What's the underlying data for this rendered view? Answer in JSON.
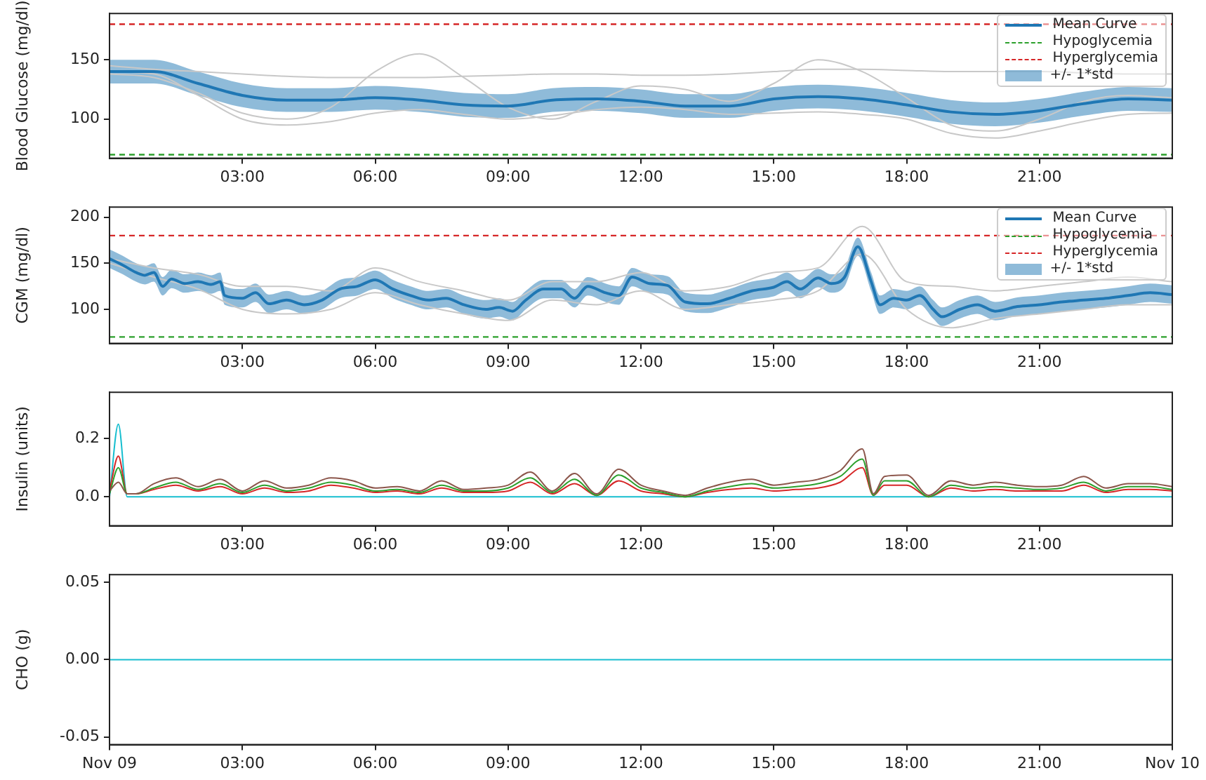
{
  "chart_data": [
    {
      "type": "line",
      "ylabel": "Blood Glucose (mg/dl)",
      "xlim": [
        0,
        24
      ],
      "ylim": [
        67,
        189
      ],
      "yticks": [
        100,
        150
      ],
      "marker": "none",
      "grid": false,
      "legend": "top right",
      "xticks": [
        {
          "value": 3,
          "label": "03:00"
        },
        {
          "value": 6,
          "label": "06:00"
        },
        {
          "value": 9,
          "label": "09:00"
        },
        {
          "value": 12,
          "label": "12:00"
        },
        {
          "value": 15,
          "label": "15:00"
        },
        {
          "value": 18,
          "label": "18:00"
        },
        {
          "value": 21,
          "label": "21:00"
        }
      ],
      "x": [
        0,
        1,
        2,
        3,
        4,
        5,
        6,
        7,
        8,
        9,
        10,
        11,
        12,
        13,
        14,
        15,
        16,
        17,
        18,
        19,
        20,
        21,
        22,
        23,
        24
      ],
      "series": [
        {
          "name": "Mean Curve",
          "color": "#1f77b4",
          "values": [
            140,
            140,
            130,
            120,
            116,
            116,
            118,
            116,
            112,
            111,
            116,
            117,
            115,
            111,
            111,
            117,
            119,
            117,
            112,
            106,
            104,
            107,
            113,
            117,
            116
          ],
          "lower": [
            130,
            130,
            120,
            110,
            106,
            106,
            108,
            106,
            102,
            101,
            106,
            107,
            105,
            101,
            101,
            107,
            109,
            107,
            102,
            96,
            94,
            97,
            103,
            107,
            106
          ],
          "upper": [
            150,
            150,
            140,
            130,
            126,
            126,
            128,
            126,
            122,
            121,
            126,
            127,
            125,
            121,
            121,
            127,
            129,
            127,
            122,
            116,
            114,
            117,
            123,
            127,
            126
          ]
        },
        {
          "color": "#c8c8c8",
          "values": [
            145,
            142,
            140,
            138,
            136,
            135,
            135,
            135,
            136,
            137,
            138,
            138,
            137,
            137,
            138,
            140,
            142,
            142,
            141,
            140,
            140,
            140,
            139,
            138,
            138
          ]
        },
        {
          "color": "#c8c8c8",
          "values": [
            138,
            135,
            122,
            105,
            100,
            110,
            140,
            155,
            135,
            110,
            100,
            115,
            128,
            125,
            115,
            130,
            150,
            140,
            118,
            95,
            90,
            100,
            115,
            120,
            118
          ]
        },
        {
          "color": "#c8c8c8",
          "values": [
            140,
            138,
            120,
            100,
            95,
            98,
            105,
            108,
            104,
            100,
            103,
            108,
            110,
            108,
            104,
            105,
            106,
            104,
            100,
            88,
            84,
            90,
            98,
            104,
            105
          ]
        }
      ],
      "annotations": [
        "+/- 1*std"
      ],
      "ref_lines": [
        {
          "axis": "y",
          "value": 70,
          "label": "Hypoglycemia",
          "color": "#2ca02c",
          "line_style": "dashed"
        },
        {
          "axis": "y",
          "value": 180,
          "label": "Hyperglycemia",
          "color": "#d62728",
          "line_style": "dashed"
        }
      ]
    },
    {
      "type": "line",
      "ylabel": "CGM (mg/dl)",
      "xlim": [
        0,
        24
      ],
      "ylim": [
        63,
        211
      ],
      "yticks": [
        100,
        150,
        200
      ],
      "marker": "none",
      "grid": false,
      "legend": "top right",
      "xticks": [
        {
          "value": 3,
          "label": "03:00"
        },
        {
          "value": 6,
          "label": "06:00"
        },
        {
          "value": 9,
          "label": "09:00"
        },
        {
          "value": 12,
          "label": "12:00"
        },
        {
          "value": 15,
          "label": "15:00"
        },
        {
          "value": 18,
          "label": "18:00"
        },
        {
          "value": 21,
          "label": "21:00"
        }
      ],
      "x": [
        0,
        0.3,
        0.6,
        0.8,
        1.0,
        1.2,
        1.4,
        1.7,
        2.0,
        2.3,
        2.5,
        2.6,
        3.0,
        3.3,
        3.6,
        4.0,
        4.4,
        4.8,
        5.2,
        5.6,
        6.0,
        6.4,
        6.8,
        7.2,
        7.6,
        8.0,
        8.5,
        8.8,
        9.1,
        9.4,
        9.8,
        10.2,
        10.5,
        10.8,
        11.2,
        11.5,
        11.8,
        12.2,
        12.6,
        13.0,
        13.5,
        14.0,
        14.5,
        15.0,
        15.3,
        15.6,
        16.0,
        16.3,
        16.6,
        16.9,
        17.2,
        17.4,
        17.7,
        18.0,
        18.3,
        18.6,
        18.8,
        19.2,
        19.6,
        20.0,
        20.5,
        21.0,
        21.5,
        22.0,
        22.5,
        23.0,
        23.5,
        24
      ],
      "series": [
        {
          "name": "Mean Curve",
          "color": "#1f77b4",
          "values": [
            155,
            148,
            140,
            137,
            140,
            125,
            133,
            128,
            130,
            127,
            130,
            115,
            112,
            118,
            106,
            110,
            105,
            110,
            122,
            125,
            132,
            122,
            115,
            110,
            112,
            105,
            100,
            102,
            98,
            110,
            122,
            122,
            112,
            125,
            118,
            115,
            135,
            128,
            126,
            108,
            106,
            112,
            120,
            124,
            130,
            122,
            134,
            128,
            135,
            168,
            130,
            105,
            112,
            110,
            115,
            100,
            92,
            100,
            105,
            98,
            103,
            105,
            108,
            110,
            112,
            115,
            118,
            116
          ],
          "lower": [
            145,
            138,
            130,
            127,
            130,
            115,
            123,
            118,
            120,
            117,
            120,
            105,
            102,
            108,
            96,
            100,
            95,
            100,
            112,
            115,
            122,
            112,
            105,
            100,
            102,
            95,
            90,
            92,
            88,
            100,
            112,
            112,
            102,
            115,
            108,
            105,
            125,
            118,
            116,
            98,
            96,
            102,
            110,
            114,
            120,
            112,
            124,
            118,
            125,
            158,
            120,
            95,
            102,
            100,
            105,
            90,
            82,
            90,
            95,
            88,
            93,
            95,
            98,
            100,
            102,
            105,
            108,
            106
          ],
          "upper": [
            165,
            158,
            150,
            147,
            150,
            135,
            143,
            138,
            140,
            137,
            140,
            125,
            122,
            128,
            116,
            120,
            115,
            120,
            132,
            135,
            142,
            132,
            125,
            120,
            122,
            115,
            110,
            112,
            108,
            120,
            132,
            132,
            122,
            135,
            128,
            125,
            145,
            138,
            136,
            118,
            116,
            122,
            130,
            134,
            140,
            132,
            144,
            138,
            145,
            178,
            140,
            115,
            122,
            120,
            125,
            110,
            102,
            110,
            115,
            108,
            113,
            115,
            118,
            120,
            122,
            125,
            128,
            126
          ]
        },
        {
          "color": "#c8c8c8",
          "x": [
            0,
            1,
            2,
            3,
            4,
            5,
            6,
            7,
            8,
            9,
            10,
            11,
            12,
            13,
            14,
            15,
            16,
            17,
            18,
            19,
            20,
            21,
            22,
            23,
            24
          ],
          "values": [
            155,
            145,
            138,
            125,
            125,
            120,
            145,
            130,
            120,
            110,
            130,
            130,
            140,
            120,
            125,
            140,
            145,
            190,
            130,
            125,
            120,
            125,
            130,
            135,
            130
          ]
        },
        {
          "color": "#c8c8c8",
          "x": [
            0,
            1,
            2,
            3,
            4,
            5,
            6,
            7,
            8,
            9,
            10,
            11,
            12,
            13,
            14,
            15,
            16,
            17,
            18,
            19,
            20,
            21,
            22,
            23,
            24
          ],
          "values": [
            150,
            135,
            122,
            100,
            95,
            100,
            118,
            105,
            95,
            88,
            110,
            105,
            120,
            100,
            105,
            110,
            120,
            160,
            100,
            80,
            90,
            95,
            100,
            105,
            105
          ]
        }
      ],
      "annotations": [
        "+/- 1*std"
      ],
      "ref_lines": [
        {
          "axis": "y",
          "value": 70,
          "label": "Hypoglycemia",
          "color": "#2ca02c",
          "line_style": "dashed"
        },
        {
          "axis": "y",
          "value": 180,
          "label": "Hyperglycemia",
          "color": "#d62728",
          "line_style": "dashed"
        }
      ]
    },
    {
      "type": "line",
      "ylabel": "Insulin (units)",
      "xlim": [
        0,
        24
      ],
      "ylim": [
        -0.1,
        0.36
      ],
      "yticks": [
        {
          "value": 0,
          "label": "0.0"
        },
        {
          "value": 0.2,
          "label": "0.2"
        }
      ],
      "marker": "none",
      "grid": false,
      "xticks": [
        {
          "value": 3,
          "label": "03:00"
        },
        {
          "value": 6,
          "label": "06:00"
        },
        {
          "value": 9,
          "label": "09:00"
        },
        {
          "value": 12,
          "label": "12:00"
        },
        {
          "value": 15,
          "label": "15:00"
        },
        {
          "value": 18,
          "label": "18:00"
        },
        {
          "value": 21,
          "label": "21:00"
        }
      ],
      "x": [
        0,
        0.2,
        0.4,
        0.6,
        1,
        1.5,
        2,
        2.5,
        3,
        3.5,
        4,
        4.5,
        5,
        5.5,
        6,
        6.5,
        7,
        7.5,
        8,
        8.5,
        9,
        9.5,
        10,
        10.5,
        11,
        11.5,
        12,
        12.5,
        13,
        13.5,
        14,
        14.5,
        15,
        15.5,
        16,
        16.5,
        17,
        17.25,
        17.5,
        18,
        18.5,
        19,
        19.5,
        20,
        20.5,
        21,
        21.5,
        22,
        22.5,
        23,
        23.5,
        24
      ],
      "series": [
        {
          "color": "#8c564b",
          "values": [
            0.02,
            0.05,
            0.01,
            0.01,
            0.045,
            0.065,
            0.035,
            0.06,
            0.02,
            0.055,
            0.03,
            0.04,
            0.065,
            0.055,
            0.03,
            0.035,
            0.02,
            0.055,
            0.025,
            0.03,
            0.04,
            0.085,
            0.02,
            0.08,
            0.01,
            0.095,
            0.04,
            0.02,
            0.005,
            0.03,
            0.05,
            0.06,
            0.04,
            0.05,
            0.06,
            0.09,
            0.165,
            0.01,
            0.07,
            0.075,
            0.005,
            0.055,
            0.04,
            0.05,
            0.04,
            0.035,
            0.04,
            0.07,
            0.03,
            0.045,
            0.045,
            0.035
          ]
        },
        {
          "color": "#2ca02c",
          "values": [
            0.01,
            0.1,
            0.01,
            0.01,
            0.03,
            0.05,
            0.025,
            0.045,
            0.015,
            0.04,
            0.02,
            0.03,
            0.05,
            0.04,
            0.02,
            0.025,
            0.015,
            0.04,
            0.02,
            0.02,
            0.03,
            0.065,
            0.015,
            0.06,
            0.005,
            0.075,
            0.03,
            0.015,
            0.0,
            0.02,
            0.035,
            0.045,
            0.03,
            0.035,
            0.045,
            0.07,
            0.13,
            0.005,
            0.055,
            0.055,
            0.0,
            0.04,
            0.03,
            0.035,
            0.03,
            0.025,
            0.03,
            0.05,
            0.02,
            0.035,
            0.035,
            0.025
          ]
        },
        {
          "color": "#d62728",
          "values": [
            0.02,
            0.14,
            0.01,
            0.01,
            0.025,
            0.04,
            0.02,
            0.035,
            0.01,
            0.03,
            0.015,
            0.02,
            0.04,
            0.03,
            0.015,
            0.02,
            0.01,
            0.03,
            0.015,
            0.015,
            0.02,
            0.05,
            0.01,
            0.045,
            0.005,
            0.055,
            0.02,
            0.01,
            0.0,
            0.015,
            0.025,
            0.03,
            0.02,
            0.025,
            0.03,
            0.05,
            0.1,
            0.005,
            0.04,
            0.04,
            0.0,
            0.03,
            0.02,
            0.025,
            0.02,
            0.02,
            0.02,
            0.04,
            0.015,
            0.025,
            0.025,
            0.02
          ]
        },
        {
          "color": "#17becf",
          "values": [
            0.0,
            0.25,
            0.0,
            0.0,
            0.0,
            0.0,
            0.0,
            0.0,
            0.0,
            0.0,
            0.0,
            0.0,
            0.0,
            0.0,
            0.0,
            0.0,
            0.0,
            0.0,
            0.0,
            0.0,
            0.0,
            0.0,
            0.0,
            0.0,
            0.0,
            0.0,
            0.0,
            0.0,
            0.0,
            0.0,
            0.0,
            0.0,
            0.0,
            0.0,
            0.0,
            0.0,
            0.0,
            0.0,
            0.0,
            0.0,
            0.0,
            0.0,
            0.0,
            0.0,
            0.0,
            0.0,
            0.0,
            0.0,
            0.0,
            0.0,
            0.0,
            0.0
          ]
        }
      ]
    },
    {
      "type": "line",
      "ylabel": "CHO (g)",
      "xlim": [
        0,
        24
      ],
      "ylim": [
        -0.055,
        0.055
      ],
      "yticks": [
        {
          "value": -0.05,
          "label": "-0.05"
        },
        {
          "value": 0,
          "label": "0.00"
        },
        {
          "value": 0.05,
          "label": "0.05"
        }
      ],
      "marker": "none",
      "grid": false,
      "xticks": [
        {
          "value": 0,
          "label": "Nov 09"
        },
        {
          "value": 3,
          "label": "03:00"
        },
        {
          "value": 6,
          "label": "06:00"
        },
        {
          "value": 9,
          "label": "09:00"
        },
        {
          "value": 12,
          "label": "12:00"
        },
        {
          "value": 15,
          "label": "15:00"
        },
        {
          "value": 18,
          "label": "18:00"
        },
        {
          "value": 21,
          "label": "21:00"
        },
        {
          "value": 24,
          "label": "Nov 10"
        }
      ],
      "x": [
        0,
        24
      ],
      "series": [
        {
          "color": "#17becf",
          "values": [
            0,
            0
          ]
        }
      ]
    }
  ]
}
